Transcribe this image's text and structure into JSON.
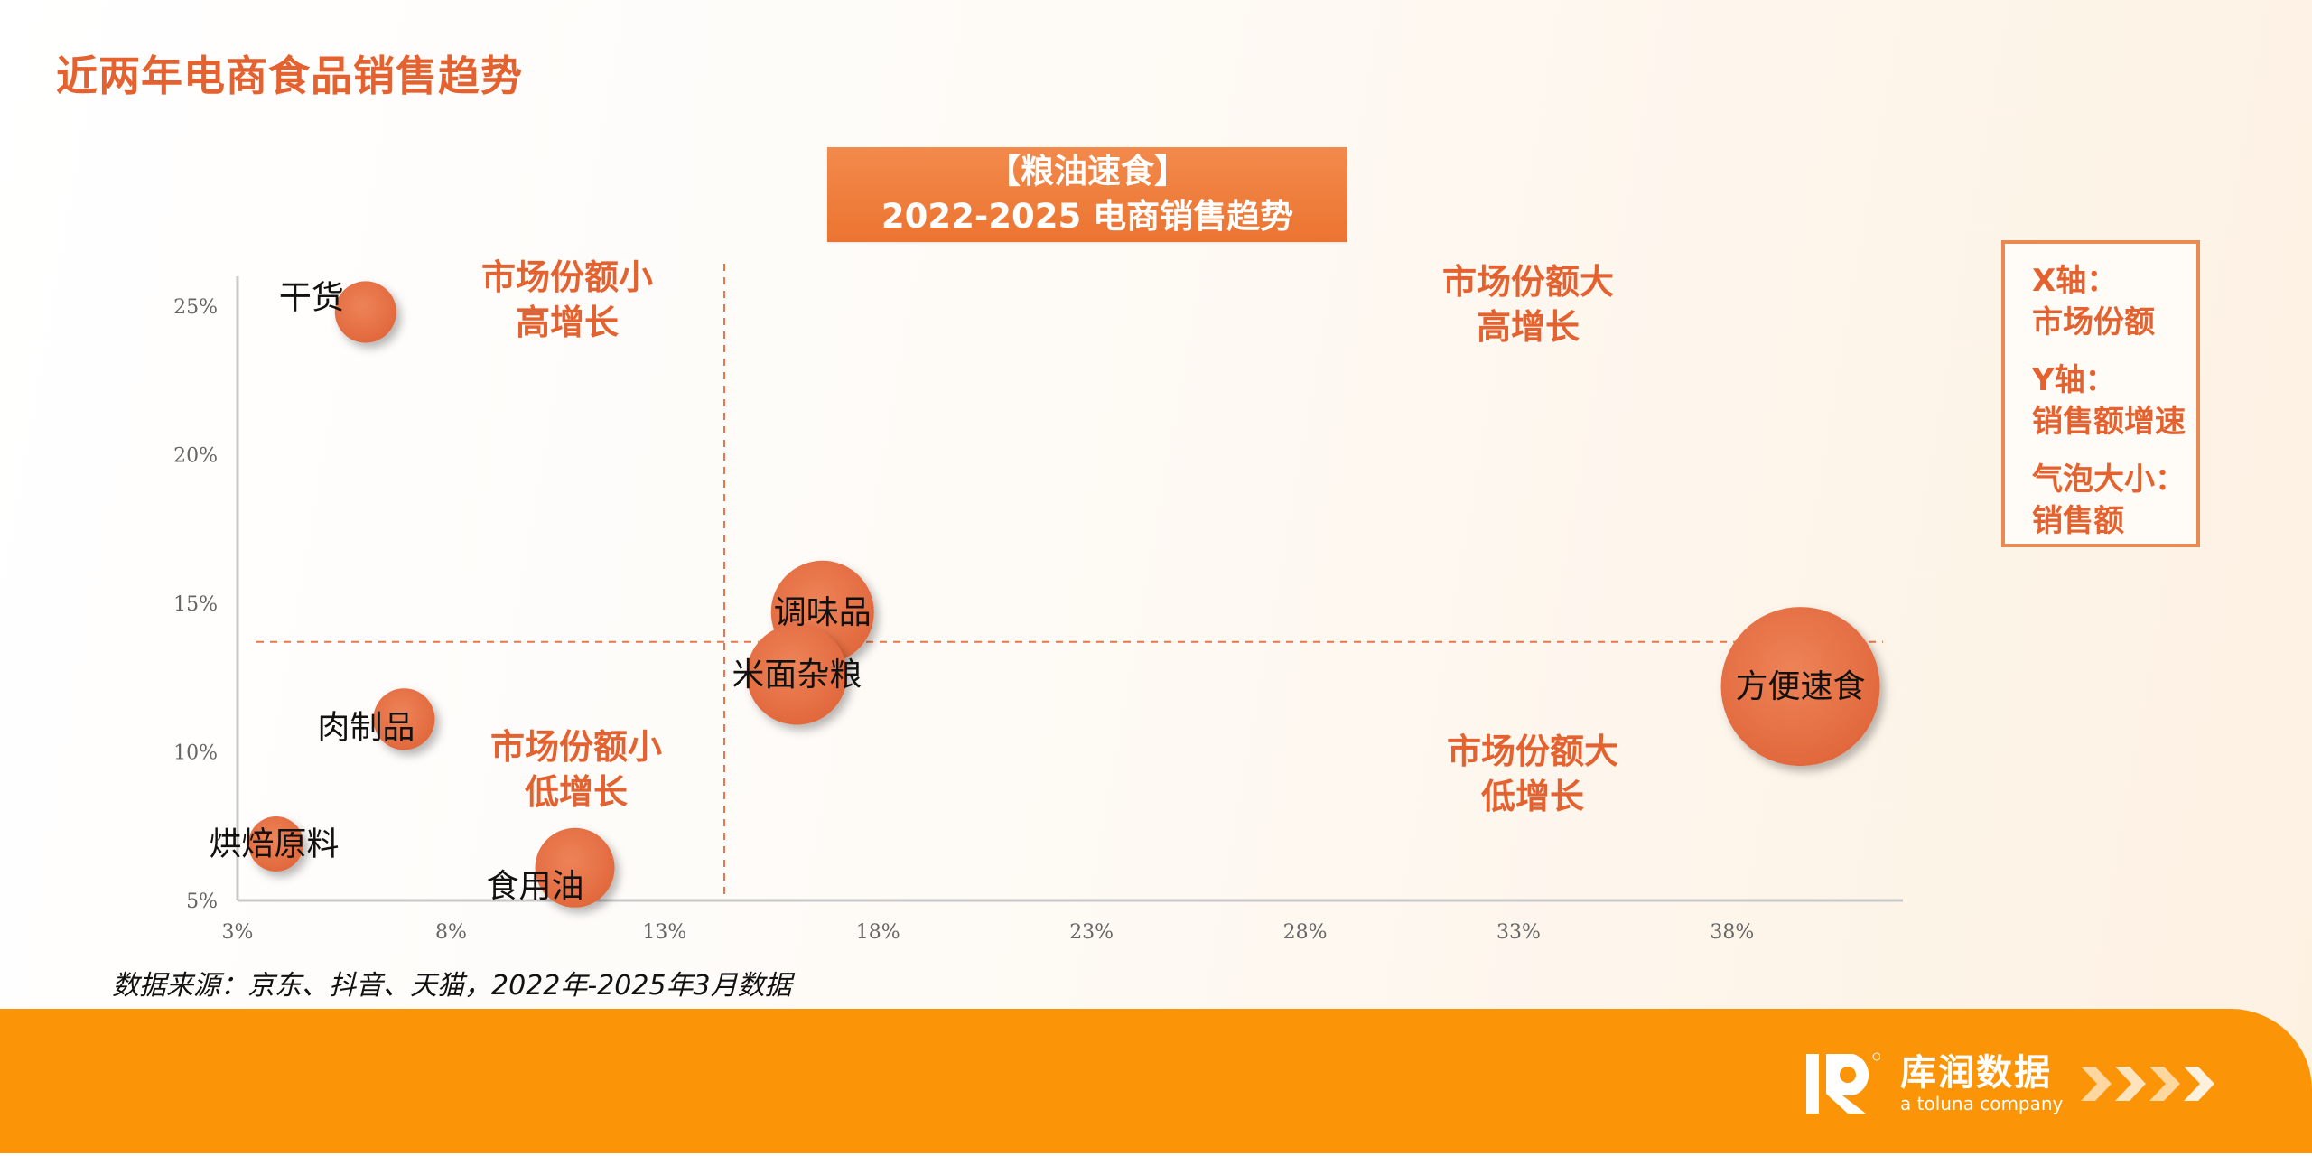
{
  "page": {
    "title": "近两年电商食品销售趋势",
    "source_note": "数据来源：京东、抖音、天猫，2022年-2025年3月数据"
  },
  "chart_title": {
    "line1": "【粮油速食】",
    "line2": "2022-2025 电商销售趋势"
  },
  "legend": {
    "x_label": "X轴：",
    "x_value": "市场份额",
    "y_label": "Y轴：",
    "y_value": "销售额增速",
    "size_label": "气泡大小：",
    "size_value": "销售额"
  },
  "quadrants": {
    "top_left": [
      "市场份额小",
      "高增长"
    ],
    "top_right": [
      "市场份额大",
      "高增长"
    ],
    "bottom_left": [
      "市场份额小",
      "低增长"
    ],
    "bottom_right": [
      "市场份额大",
      "低增长"
    ]
  },
  "footer": {
    "brand_cn": "库润数据",
    "brand_en": "a toluna company"
  },
  "colors": {
    "accent": "#e4622f",
    "bubble": "#e8754a",
    "footer": "#fb9406",
    "axis": "#c8c8c8"
  },
  "chart_data": {
    "type": "scatter",
    "subtype": "bubble",
    "title": "【粮油速食】2022-2025 电商销售趋势",
    "xlabel": "市场份额",
    "ylabel": "销售额增速",
    "size_label": "销售额",
    "xlim": [
      3,
      42
    ],
    "ylim": [
      5,
      26
    ],
    "x_ticks": [
      "3%",
      "8%",
      "13%",
      "18%",
      "23%",
      "28%",
      "33%",
      "38%"
    ],
    "x_tick_values": [
      3,
      8,
      13,
      18,
      23,
      28,
      33,
      38
    ],
    "y_ticks": [
      "5%",
      "10%",
      "15%",
      "20%",
      "25%"
    ],
    "y_tick_values": [
      5,
      10,
      15,
      20,
      25
    ],
    "grid": false,
    "reference_lines": {
      "x": 14.4,
      "y": 13.7
    },
    "points": [
      {
        "name": "干货",
        "x": 6.0,
        "y": 24.8,
        "size": 1.5,
        "label_pos": "left-top"
      },
      {
        "name": "肉制品",
        "x": 6.9,
        "y": 11.1,
        "size": 1.5,
        "label_pos": "left"
      },
      {
        "name": "烘焙原料",
        "x": 3.9,
        "y": 6.9,
        "size": 1.2,
        "label_pos": "center"
      },
      {
        "name": "食用油",
        "x": 10.9,
        "y": 6.1,
        "size": 2.5,
        "label_pos": "left-bottom"
      },
      {
        "name": "调味品",
        "x": 16.7,
        "y": 14.7,
        "size": 4.2,
        "label_pos": "center"
      },
      {
        "name": "米面杂粮",
        "x": 16.1,
        "y": 12.6,
        "size": 4.0,
        "label_pos": "center"
      },
      {
        "name": "方便速食",
        "x": 39.6,
        "y": 12.2,
        "size": 10.0,
        "label_pos": "center"
      }
    ]
  }
}
